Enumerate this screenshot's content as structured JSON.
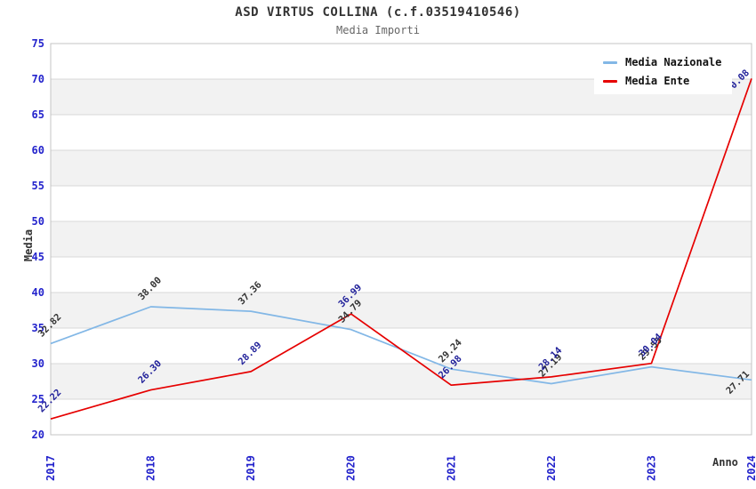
{
  "chart": {
    "title": "ASD VIRTUS COLLINA (c.f.03519410546)",
    "subtitle": "Media Importi",
    "y_axis_title": "Media",
    "x_axis_title": "Anno"
  },
  "legend": {
    "position": "top-right",
    "items": [
      {
        "label": "Media Nazionale",
        "color": "#82b7e6"
      },
      {
        "label": "Media Ente",
        "color": "#e60000"
      }
    ]
  },
  "chart_data": {
    "type": "line",
    "title": "ASD VIRTUS COLLINA (c.f.03519410546)",
    "subtitle": "Media Importi",
    "xlabel": "Anno",
    "ylabel": "Media",
    "x": [
      2017,
      2018,
      2019,
      2020,
      2021,
      2022,
      2023,
      2024
    ],
    "series": [
      {
        "name": "Media Nazionale",
        "color": "#82b7e6",
        "label_color": "#333333",
        "values": [
          32.82,
          38.0,
          37.36,
          34.79,
          29.24,
          27.19,
          29.55,
          27.71
        ]
      },
      {
        "name": "Media Ente",
        "color": "#e60000",
        "label_color": "#1f1f99",
        "values": [
          22.22,
          26.3,
          28.89,
          36.99,
          26.98,
          28.14,
          30.04,
          70.08
        ]
      }
    ],
    "ylim": [
      20,
      75
    ],
    "ytick_step": 5,
    "grid": true,
    "band_fill": "#f2f2f2",
    "grid_color": "#d8d8d8",
    "border_color": "#c4c4c4",
    "tick_label_color": "#2323cc",
    "legend_position": "top-right"
  }
}
